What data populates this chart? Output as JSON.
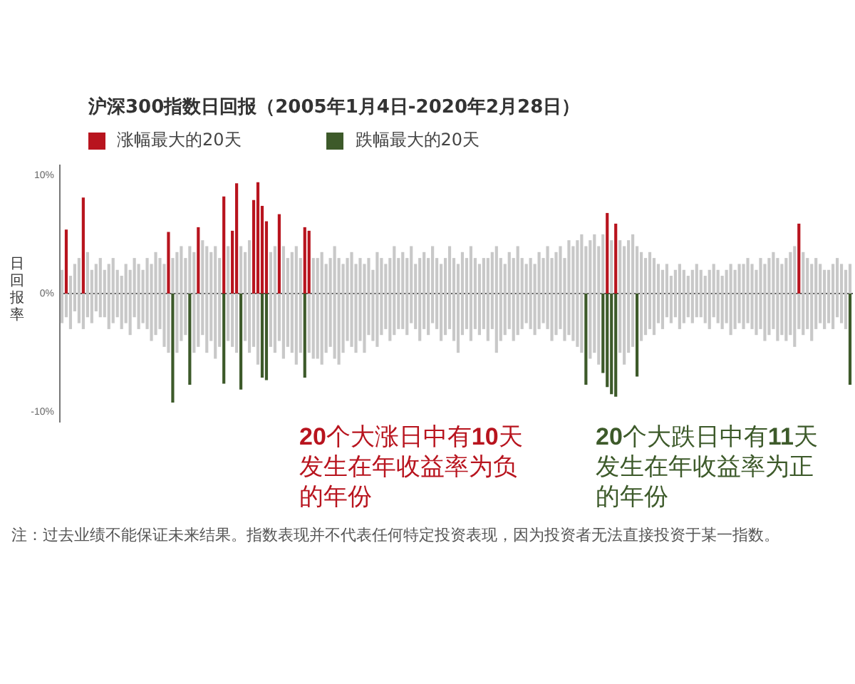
{
  "chart_data": {
    "type": "bar",
    "title": "沪深300指数日回报（2005年1月4日-2020年2月28日）",
    "ylabel": "日回报率",
    "legend": "top left",
    "tick_labels": "y",
    "stacked": true,
    "ylim": [
      -10.8,
      10.8
    ],
    "yticks": [
      {
        "value": 10,
        "label": "10%"
      },
      {
        "value": 0,
        "label": "0%"
      },
      {
        "value": -10,
        "label": "-10%"
      }
    ],
    "annotations": [
      "20个大涨日中有10天发生在年收益率为负的年份",
      "20个大跌日中有11天发生在年收益率为正的年份",
      "注：过去业绩不能保证未来结果。指数表现并不代表任何特定投资表现，因为投资者无法直接投资于某一指数。"
    ],
    "categories": [
      null,
      null,
      null,
      null,
      null,
      null,
      null,
      null,
      null,
      null,
      null,
      null,
      null,
      null,
      null,
      null,
      null,
      null,
      null,
      null,
      null,
      null,
      null,
      null,
      null,
      null,
      null,
      null,
      null,
      null,
      null,
      null,
      null,
      null,
      null,
      null,
      null,
      null,
      null,
      null,
      null,
      null,
      null,
      null,
      null,
      null,
      null,
      null,
      null,
      null,
      null,
      null,
      null,
      null,
      null,
      null,
      null,
      null,
      null,
      null,
      null,
      null,
      null,
      null,
      null,
      null,
      null,
      null,
      null,
      null,
      null,
      null,
      null,
      null,
      null,
      null,
      null,
      null,
      null,
      null,
      null,
      null,
      null,
      null,
      null,
      null,
      null,
      null,
      null,
      null,
      null,
      null,
      null,
      null,
      null,
      null,
      null,
      null,
      null,
      null,
      null,
      null,
      null,
      null,
      null,
      null,
      null,
      null,
      null,
      null,
      null,
      null,
      null,
      null,
      null,
      null,
      null,
      null,
      null,
      null,
      null,
      null,
      null,
      null,
      null,
      null,
      null,
      null,
      null,
      null,
      null,
      null,
      null,
      null,
      null,
      null,
      null,
      null,
      null,
      null,
      null,
      null,
      null,
      null,
      null,
      null,
      null,
      null,
      null,
      null,
      null,
      null,
      null,
      null,
      null,
      null,
      null,
      null,
      null,
      null,
      null,
      null,
      null,
      null,
      null,
      null,
      null,
      null,
      null,
      null,
      null,
      null,
      null,
      null,
      null,
      null,
      null,
      null,
      null,
      null,
      null,
      null,
      null,
      null,
      null,
      null
    ],
    "series": [
      {
        "color": "#c8c8c8",
        "values": [
          2,
          null,
          1.5,
          2.5,
          3,
          null,
          3.5,
          2,
          2.5,
          3,
          2,
          2.5,
          3,
          2,
          1.5,
          2.5,
          2,
          3,
          2.5,
          2,
          3,
          2.5,
          3.5,
          3,
          2.5,
          null,
          3,
          3.5,
          4,
          3,
          4,
          3.5,
          null,
          4.5,
          4,
          3.5,
          4,
          3,
          null,
          4,
          null,
          null,
          4,
          3.5,
          4.5,
          null,
          null,
          null,
          null,
          3.5,
          4,
          null,
          4,
          3,
          3.5,
          4,
          3,
          null,
          null,
          3,
          3,
          3.5,
          2.5,
          3,
          4,
          3,
          2.5,
          3,
          3.5,
          2.5,
          3,
          2.5,
          3,
          2,
          3.5,
          3,
          2.5,
          3,
          4,
          3,
          3.5,
          3,
          4,
          2.5,
          3,
          3.5,
          3,
          4,
          3,
          2.5,
          3,
          4,
          3,
          2.5,
          3.5,
          3,
          4,
          3,
          2.5,
          3,
          3,
          3.5,
          4,
          3,
          2.5,
          3.5,
          3,
          4,
          3,
          2.5,
          3,
          2.5,
          3.5,
          3,
          4,
          3,
          3.5,
          4,
          3,
          4.5,
          4,
          4.5,
          5,
          4,
          4.5,
          5,
          4,
          5,
          null,
          4.5,
          null,
          4.5,
          4,
          4.5,
          5,
          4,
          3.5,
          3,
          3.5,
          3,
          2.5,
          2,
          2.5,
          1.5,
          2,
          2.5,
          2,
          1.5,
          2,
          2.5,
          2,
          1.5,
          2,
          2.5,
          2,
          1.5,
          2,
          2.5,
          2,
          2.5,
          2.5,
          3,
          2.5,
          2,
          3,
          2.5,
          3,
          3.5,
          3,
          2.5,
          3,
          3.5,
          4,
          null,
          3.5,
          3,
          2.5,
          3,
          2.5,
          2,
          2,
          2.5,
          3,
          2.5,
          2,
          2.5
        ]
      },
      {
        "color": "#c8c8c8",
        "values": [
          -2.5,
          -2,
          -3,
          -1.5,
          -2.5,
          -3,
          -2,
          -2.5,
          -1.5,
          -2,
          -2,
          -3,
          -2.5,
          -2,
          -3,
          -2.5,
          -3.5,
          -2,
          -3,
          -2.5,
          -3,
          -4,
          -3.5,
          -3,
          -4.5,
          -5,
          null,
          -5,
          -4,
          -3.5,
          null,
          -5,
          -4.5,
          -3.5,
          -5,
          -4,
          -5.5,
          -4.5,
          null,
          -4,
          -4.5,
          -5,
          null,
          -4,
          -5,
          -4.5,
          -6,
          null,
          null,
          -4.5,
          -5,
          -4,
          -5.5,
          -4.5,
          -5,
          -6,
          -5,
          null,
          -5,
          -5.5,
          -5.5,
          -6,
          -5,
          -4.5,
          -5.5,
          -6,
          -5,
          -4,
          -4.5,
          -5,
          -4,
          -5,
          -3.5,
          -4,
          -4.5,
          -3.5,
          -3,
          -4,
          -3.5,
          -3,
          -3,
          -3.5,
          -2.5,
          -3,
          -4,
          -3,
          -3.5,
          -2.5,
          -3,
          -4,
          -3.5,
          -3,
          -4,
          -5,
          -3.5,
          -3,
          -4,
          -3,
          -3.5,
          -3,
          -4,
          -3,
          -5,
          -4,
          -3.5,
          -3,
          -4,
          -3.5,
          -3,
          -2.5,
          -3,
          -3.5,
          -3,
          -2.5,
          -3,
          -4,
          -3.5,
          -3,
          -4,
          -3.5,
          -4,
          -4.5,
          -5,
          null,
          -5.5,
          -5,
          -6,
          null,
          null,
          null,
          null,
          -5,
          -6,
          -5,
          -4.5,
          null,
          -4,
          -3.5,
          -3,
          -3.5,
          -2.5,
          -3,
          -2,
          -2.5,
          -2,
          -3,
          -2.5,
          -2,
          -2.5,
          -2,
          -2,
          -2.5,
          -3,
          -2,
          -2.5,
          -3,
          -2.5,
          -3.5,
          -3,
          -2.5,
          -3,
          -2.5,
          -3,
          -3.5,
          -3,
          -4,
          -3.5,
          -3,
          -4,
          -3.5,
          -4,
          -3.5,
          -4.5,
          -3,
          -3.5,
          -3,
          -4,
          -3,
          -2.5,
          -3,
          -2.5,
          -3,
          -2,
          -2.5,
          -3,
          null
        ]
      },
      {
        "name": "涨幅最大的20天",
        "color": "#b8141e",
        "values": [
          null,
          5.4,
          null,
          null,
          null,
          8.1,
          null,
          null,
          null,
          null,
          null,
          null,
          null,
          null,
          null,
          null,
          null,
          null,
          null,
          null,
          null,
          null,
          null,
          null,
          null,
          5.2,
          null,
          null,
          null,
          null,
          null,
          null,
          5.6,
          null,
          null,
          null,
          null,
          null,
          8.2,
          null,
          5.3,
          9.3,
          null,
          null,
          null,
          7.9,
          9.4,
          7.4,
          6.1,
          null,
          null,
          6.7,
          null,
          null,
          null,
          null,
          null,
          5.6,
          5.3,
          null,
          null,
          null,
          null,
          null,
          null,
          null,
          null,
          null,
          null,
          null,
          null,
          null,
          null,
          null,
          null,
          null,
          null,
          null,
          null,
          null,
          null,
          null,
          null,
          null,
          null,
          null,
          null,
          null,
          null,
          null,
          null,
          null,
          null,
          null,
          null,
          null,
          null,
          null,
          null,
          null,
          null,
          null,
          null,
          null,
          null,
          null,
          null,
          null,
          null,
          null,
          null,
          null,
          null,
          null,
          null,
          null,
          null,
          null,
          null,
          null,
          null,
          null,
          null,
          null,
          null,
          null,
          null,
          null,
          6.8,
          null,
          5.9,
          null,
          null,
          null,
          null,
          null,
          null,
          null,
          null,
          null,
          null,
          null,
          null,
          null,
          null,
          null,
          null,
          null,
          null,
          null,
          null,
          null,
          null,
          null,
          null,
          null,
          null,
          null,
          null,
          null,
          null,
          null,
          null,
          null,
          null,
          null,
          null,
          null,
          null,
          null,
          null,
          null,
          null,
          5.9,
          null,
          null,
          null,
          null,
          null,
          null,
          null,
          null,
          null,
          null,
          null,
          null
        ]
      },
      {
        "name": "跌幅最大的20天",
        "color": "#3d5a2a",
        "values": [
          null,
          null,
          null,
          null,
          null,
          null,
          null,
          null,
          null,
          null,
          null,
          null,
          null,
          null,
          null,
          null,
          null,
          null,
          null,
          null,
          null,
          null,
          null,
          null,
          null,
          null,
          -9.2,
          null,
          null,
          null,
          -7.7,
          null,
          null,
          null,
          null,
          null,
          null,
          null,
          -7.6,
          null,
          null,
          null,
          -8.1,
          null,
          null,
          null,
          null,
          -7.1,
          -7.3,
          null,
          null,
          null,
          null,
          null,
          null,
          null,
          null,
          -7.1,
          null,
          null,
          null,
          null,
          null,
          null,
          null,
          null,
          null,
          null,
          null,
          null,
          null,
          null,
          null,
          null,
          null,
          null,
          null,
          null,
          null,
          null,
          null,
          null,
          null,
          null,
          null,
          null,
          null,
          null,
          null,
          null,
          null,
          null,
          null,
          null,
          null,
          null,
          null,
          null,
          null,
          null,
          null,
          null,
          null,
          null,
          null,
          null,
          null,
          null,
          null,
          null,
          null,
          null,
          null,
          null,
          null,
          null,
          null,
          null,
          null,
          null,
          null,
          null,
          null,
          -7.7,
          null,
          null,
          null,
          -6.7,
          -7.9,
          -8.5,
          -8.7,
          null,
          null,
          null,
          null,
          -7.0,
          null,
          null,
          null,
          null,
          null,
          null,
          null,
          null,
          null,
          null,
          null,
          null,
          null,
          null,
          null,
          null,
          null,
          null,
          null,
          null,
          null,
          null,
          null,
          null,
          null,
          null,
          null,
          null,
          null,
          null,
          null,
          null,
          null,
          null,
          null,
          null,
          null,
          null,
          null,
          null,
          null,
          null,
          null,
          null,
          null,
          null,
          null,
          null,
          null,
          -7.7
        ]
      }
    ]
  }
}
